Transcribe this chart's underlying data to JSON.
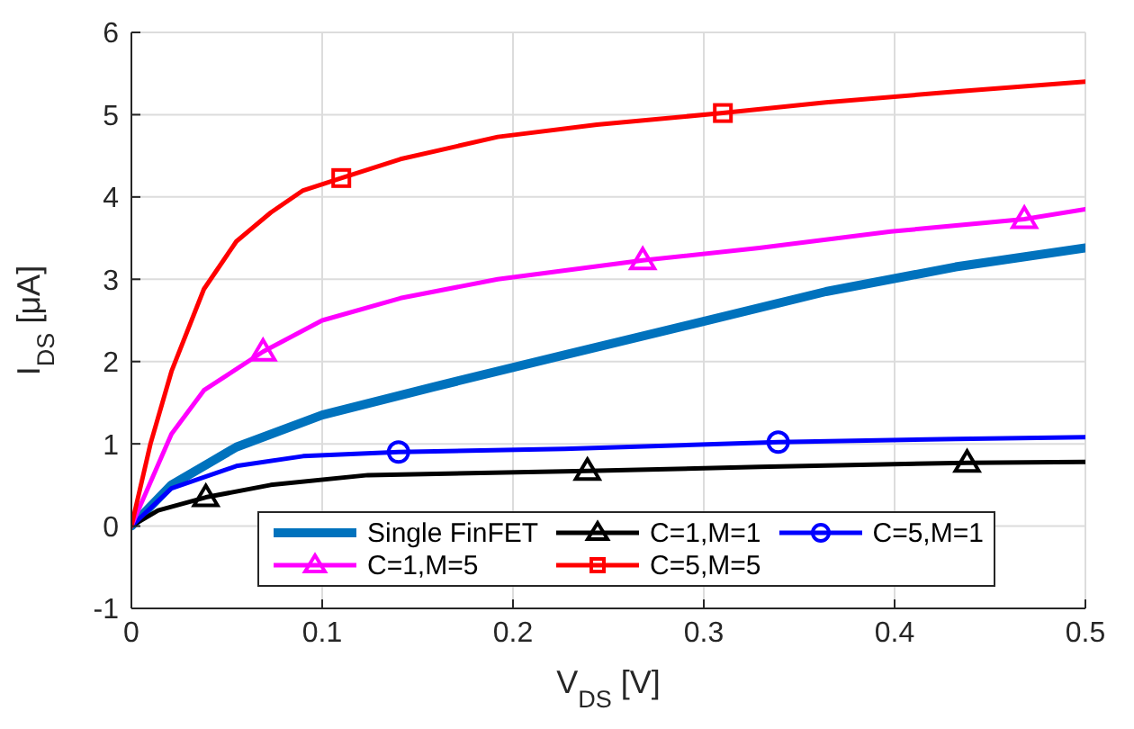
{
  "chart_data": {
    "type": "line",
    "xlabel": "V$_{DS}$ [V]",
    "ylabel": "I$_{DS}$ [μA]",
    "xlim": [
      0,
      0.5
    ],
    "xticks": [
      0,
      0.1,
      0.2,
      0.3,
      0.4,
      0.5
    ],
    "ylim": [
      -1,
      6
    ],
    "yticks": [
      -1,
      0,
      1,
      2,
      3,
      4,
      5,
      6
    ],
    "grid": true,
    "legend": "bottom",
    "series": [
      {
        "name": "Single FinFET",
        "color": "#0072bd",
        "x": [
          0,
          0.021,
          0.055,
          0.1,
          0.158,
          0.227,
          0.295,
          0.364,
          0.432,
          0.5
        ],
        "values": [
          0,
          0.5,
          0.96,
          1.35,
          1.69,
          2.08,
          2.46,
          2.85,
          3.15,
          3.38
        ]
      },
      {
        "name": "C=1,M=1",
        "color": "#000000",
        "x": [
          0,
          0.014,
          0.039,
          0.073,
          0.124,
          0.239,
          0.329,
          0.438,
          0.5
        ],
        "values": [
          0,
          0.19,
          0.35,
          0.5,
          0.62,
          0.67,
          0.72,
          0.77,
          0.78
        ]
      },
      {
        "type": "scatter",
        "color": "#000000",
        "marker": "triangle",
        "x": [
          0.039,
          0.239,
          0.438
        ],
        "values": [
          0.35,
          0.67,
          0.77
        ]
      },
      {
        "name": "C=5,M=1",
        "color": "#0000ff",
        "x": [
          0,
          0.021,
          0.055,
          0.09,
          0.14,
          0.227,
          0.339,
          0.432,
          0.5
        ],
        "values": [
          0,
          0.46,
          0.73,
          0.85,
          0.9,
          0.94,
          1.02,
          1.06,
          1.08
        ]
      },
      {
        "type": "scatter",
        "color": "#0000ff",
        "marker": "circle",
        "x": [
          0.14,
          0.339
        ],
        "values": [
          0.9,
          1.02
        ]
      },
      {
        "name": "C=1,M=5",
        "color": "#ff00ff",
        "x": [
          0,
          0.021,
          0.038,
          0.069,
          0.1,
          0.141,
          0.192,
          0.268,
          0.329,
          0.398,
          0.468,
          0.5
        ],
        "values": [
          0,
          1.12,
          1.65,
          2.12,
          2.5,
          2.77,
          3.0,
          3.23,
          3.38,
          3.58,
          3.73,
          3.85
        ]
      },
      {
        "type": "scatter",
        "color": "#ff00ff",
        "marker": "triangle",
        "x": [
          0.069,
          0.268,
          0.468
        ],
        "values": [
          2.12,
          3.23,
          3.73
        ]
      },
      {
        "name": "C=5,M=5",
        "color": "#ff0000",
        "x": [
          0,
          0.01,
          0.021,
          0.038,
          0.055,
          0.073,
          0.09,
          0.11,
          0.141,
          0.192,
          0.244,
          0.31,
          0.364,
          0.432,
          0.5
        ],
        "values": [
          0,
          1.0,
          1.88,
          2.88,
          3.46,
          3.81,
          4.08,
          4.23,
          4.46,
          4.73,
          4.88,
          5.02,
          5.15,
          5.28,
          5.4
        ]
      },
      {
        "type": "scatter",
        "color": "#ff0000",
        "marker": "square",
        "x": [
          0.11,
          0.31
        ],
        "values": [
          4.23,
          5.02
        ]
      }
    ]
  }
}
